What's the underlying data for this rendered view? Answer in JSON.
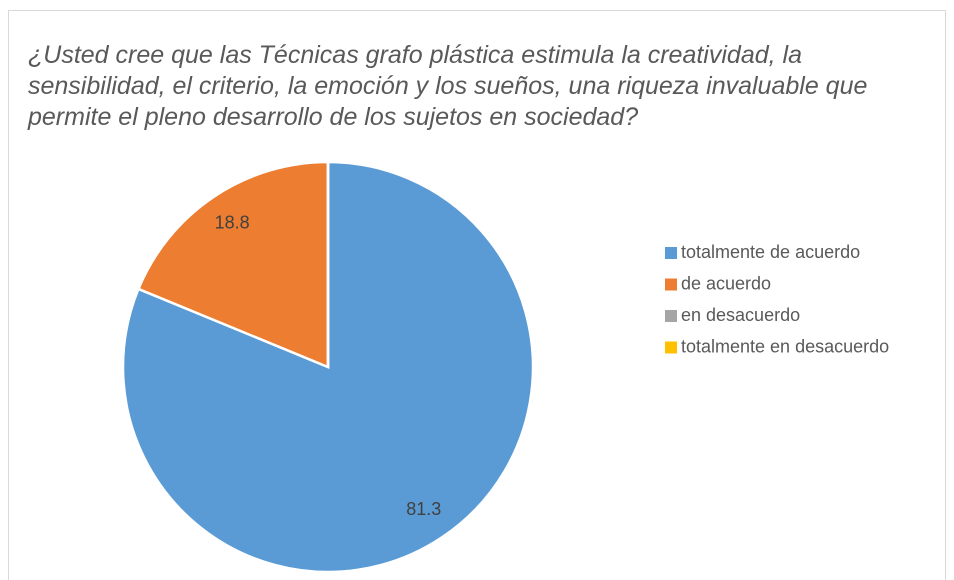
{
  "chart_data": {
    "type": "pie",
    "title": "¿Usted cree que las Técnicas grafo plástica estimula la creatividad, la sensibilidad, el criterio, la emoción y los sueños, una riqueza invaluable que permite el pleno desarrollo de los sujetos en sociedad?",
    "categories": [
      "totalmente de acuerdo",
      "de acuerdo",
      "en desacuerdo",
      "totalmente en desacuerdo"
    ],
    "values": [
      81.3,
      18.8,
      0,
      0
    ],
    "colors": [
      "#5b9bd5",
      "#ed7d31",
      "#a5a5a5",
      "#ffc000"
    ],
    "legend": "right"
  }
}
